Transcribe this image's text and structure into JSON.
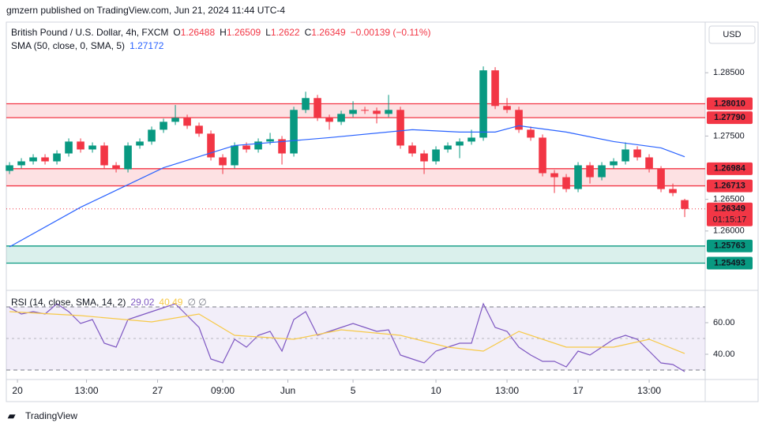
{
  "header": {
    "text": "gmzern published on TradingView.com, Jun 21, 2024 11:44 UTC-4"
  },
  "footer": {
    "text": "TradingView"
  },
  "chart_data": [
    {
      "type": "candlestick",
      "name": "British Pound / U.S. Dollar, 4h, FXCM",
      "legend_letters": [
        "O",
        "H",
        "L",
        "C"
      ],
      "change": "−0.00139 (−0.11%)",
      "currency": "USD",
      "countdown": "01:15:17",
      "up_color": "#089981",
      "down_color": "#f23645",
      "open": [
        1.2695,
        1.27038,
        1.271,
        1.27163,
        1.271,
        1.27225,
        1.27413,
        1.27288,
        1.2735,
        1.27038,
        1.26975,
        1.2735,
        1.27413,
        1.276,
        1.27725,
        1.27788,
        1.27663,
        1.27538,
        1.27163,
        1.27038,
        1.2735,
        1.27288,
        1.27413,
        1.2745,
        1.27225,
        1.27913,
        1.281,
        1.27788,
        1.27725,
        1.2785,
        1.27913,
        1.279,
        1.2785,
        1.27913,
        1.2735,
        1.27225,
        1.271,
        1.27288,
        1.2735,
        1.27413,
        1.27475,
        1.28538,
        1.27975,
        1.27913,
        1.276,
        1.27475,
        1.26913,
        1.2685,
        1.26663,
        1.27038,
        1.2685,
        1.27038,
        1.271,
        1.27288,
        1.27163,
        1.26975,
        1.26663,
        1.26488
      ],
      "high": [
        1.27088,
        1.2715,
        1.27213,
        1.27213,
        1.27275,
        1.27463,
        1.27463,
        1.274,
        1.274,
        1.27088,
        1.274,
        1.27463,
        1.2765,
        1.27775,
        1.2799,
        1.27838,
        1.27713,
        1.27588,
        1.27213,
        1.274,
        1.274,
        1.27463,
        1.2755,
        1.275,
        1.27963,
        1.282,
        1.2815,
        1.27838,
        1.279,
        1.2805,
        1.27963,
        1.2795,
        1.2815,
        1.27963,
        1.274,
        1.27275,
        1.27338,
        1.274,
        1.27463,
        1.276,
        1.286,
        1.28588,
        1.281,
        1.27963,
        1.2765,
        1.27525,
        1.26963,
        1.269,
        1.27088,
        1.27088,
        1.27088,
        1.2715,
        1.274,
        1.27338,
        1.27213,
        1.27025,
        1.2675,
        1.26509
      ],
      "low": [
        1.269,
        1.26988,
        1.2705,
        1.2705,
        1.2705,
        1.27175,
        1.27238,
        1.27238,
        1.26988,
        1.26925,
        1.26925,
        1.273,
        1.27363,
        1.2755,
        1.27675,
        1.27613,
        1.27488,
        1.27113,
        1.269,
        1.26988,
        1.27238,
        1.27238,
        1.27363,
        1.2705,
        1.27175,
        1.27863,
        1.27738,
        1.276,
        1.27675,
        1.278,
        1.2785,
        1.277,
        1.278,
        1.273,
        1.27175,
        1.269,
        1.2705,
        1.27238,
        1.2715,
        1.27363,
        1.27425,
        1.27925,
        1.27863,
        1.2755,
        1.27425,
        1.26863,
        1.266,
        1.26613,
        1.26613,
        1.2675,
        1.268,
        1.26988,
        1.2705,
        1.27113,
        1.26925,
        1.26613,
        1.2655,
        1.2622
      ],
      "close": [
        1.27038,
        1.271,
        1.27163,
        1.271,
        1.27225,
        1.27413,
        1.27288,
        1.2735,
        1.27038,
        1.26975,
        1.2735,
        1.27413,
        1.276,
        1.27725,
        1.27788,
        1.27663,
        1.27538,
        1.27163,
        1.27038,
        1.2735,
        1.27288,
        1.27413,
        1.2745,
        1.27225,
        1.27913,
        1.281,
        1.27788,
        1.27725,
        1.2785,
        1.27913,
        1.279,
        1.2785,
        1.27913,
        1.2735,
        1.27225,
        1.271,
        1.27288,
        1.2735,
        1.27413,
        1.27475,
        1.28538,
        1.27975,
        1.27913,
        1.276,
        1.27475,
        1.26913,
        1.2685,
        1.26663,
        1.27038,
        1.2685,
        1.27038,
        1.271,
        1.27288,
        1.27163,
        1.26975,
        1.26663,
        1.266,
        1.26349
      ],
      "series": [
        {
          "name": "SMA (50, close, 0, SMA, 5)",
          "color": "#2962ff",
          "x": [
            0,
            6,
            13,
            19,
            27,
            34,
            38,
            41,
            43,
            47,
            51,
            55,
            57
          ],
          "values": [
            1.2575,
            1.26375,
            1.27,
            1.2735,
            1.27475,
            1.276,
            1.27563,
            1.27563,
            1.27663,
            1.27563,
            1.27413,
            1.27313,
            1.27172
          ]
        }
      ],
      "zones": [
        {
          "values": [
            1.2801,
            1.2779
          ],
          "value_labels": [
            "1.28010",
            "1.27790"
          ],
          "color": "#f23645"
        },
        {
          "values": [
            1.26984,
            1.26713
          ],
          "value_labels": [
            "1.26984",
            "1.26713"
          ],
          "color": "#f23645"
        },
        {
          "values": [
            1.25763,
            1.25493
          ],
          "value_labels": [
            "1.25763",
            "1.25493"
          ],
          "color": "#089981"
        }
      ],
      "xlim": [
        -0.27,
        58.73
      ],
      "xticks": [
        {
          "value": 0.67,
          "label": "20"
        },
        {
          "value": 6.5,
          "label": "13:00"
        },
        {
          "value": 12.5,
          "label": "27"
        },
        {
          "value": 18,
          "label": "09:00"
        },
        {
          "value": 23.5,
          "label": "Jun"
        },
        {
          "value": 29,
          "label": "5"
        },
        {
          "value": 36,
          "label": "10"
        },
        {
          "value": 42,
          "label": "13:00"
        },
        {
          "value": 48,
          "label": "17"
        },
        {
          "value": 54,
          "label": "13:00"
        }
      ],
      "ylim": [
        1.251,
        1.293
      ],
      "yticks": [
        {
          "value": 1.26,
          "label": "1.26000"
        },
        {
          "value": 1.265,
          "label": "1.26500"
        },
        {
          "value": 1.275,
          "label": "1.27500"
        },
        {
          "value": 1.285,
          "label": "1.28500"
        }
      ]
    },
    {
      "type": "line",
      "title": "RSI (14, close, SMA, 14, 2)",
      "extra": "∅ ∅",
      "bands": [
        30,
        50,
        70
      ],
      "band_color": "#7e57c2",
      "series": [
        {
          "name": "RSI",
          "color": "#7e57c2",
          "values": [
            69.5,
            65.5,
            67,
            65.5,
            72,
            67,
            59.5,
            62,
            47,
            44.5,
            62,
            64.5,
            67,
            69.5,
            72,
            64.5,
            57,
            37,
            34.5,
            49.5,
            44.5,
            52,
            54.5,
            42,
            62,
            67,
            52,
            54.5,
            57,
            59.5,
            57,
            54.5,
            55.5,
            39.5,
            37,
            34.5,
            42,
            44.5,
            47,
            47,
            72,
            57,
            54.5,
            44.5,
            39.5,
            35.5,
            35.5,
            32,
            42,
            39.5,
            44.5,
            49.5,
            52,
            49.5,
            42,
            34.5,
            33.5,
            29.02
          ]
        },
        {
          "name": "RSI-based MA",
          "color": "#f7c948",
          "x": [
            0,
            6,
            12,
            16,
            19,
            24,
            28,
            33,
            37,
            40,
            43,
            47,
            51,
            54,
            57
          ],
          "values": [
            67,
            64.5,
            60.5,
            65.5,
            52,
            49.5,
            55.5,
            52,
            44.5,
            42,
            54.5,
            44.5,
            44.5,
            49.5,
            40.49
          ]
        }
      ],
      "xlim": [
        -0.27,
        58.73
      ],
      "ylim": [
        24.5,
        77
      ],
      "yticks": [
        {
          "value": 60,
          "label": "60.00"
        },
        {
          "value": 40,
          "label": "40.00"
        }
      ]
    }
  ]
}
